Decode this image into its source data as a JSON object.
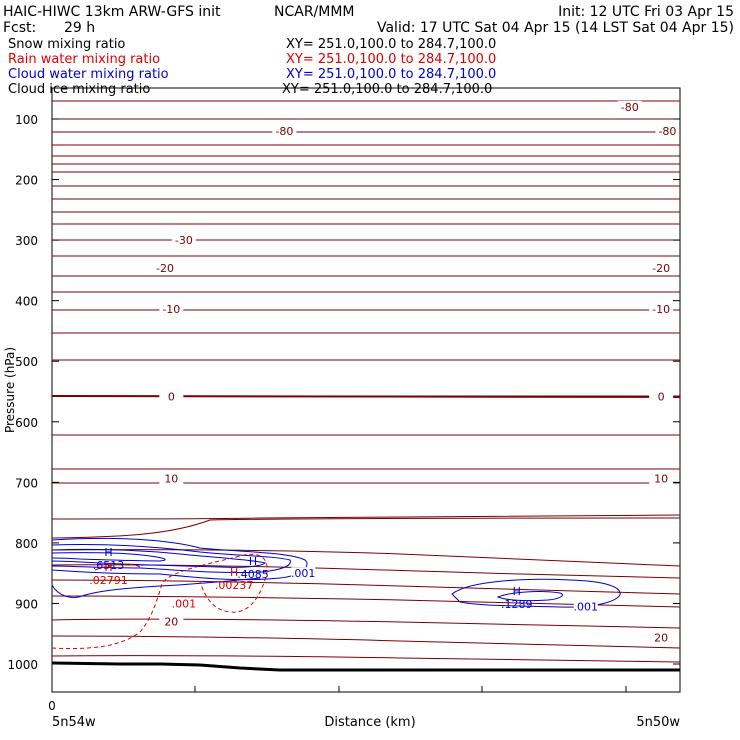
{
  "header": {
    "title": "HAIC-HIWC 13km ARW-GFS init",
    "org": "NCAR/MMM",
    "init": "Init: 12 UTC Fri 03 Apr 15",
    "fcst_label": "Fcst:",
    "fcst_value": "29 h",
    "valid": "Valid: 17 UTC Sat 04 Apr 15 (14 LST Sat 04 Apr 15)"
  },
  "fields": [
    {
      "name": "Snow mixing ratio",
      "xy": "XY= 251.0,100.0 to 284.7,100.0",
      "color": "#000000"
    },
    {
      "name": "Rain water mixing ratio",
      "xy": "XY= 251.0,100.0 to 284.7,100.0",
      "color": "#e00000"
    },
    {
      "name": "Cloud water mixing ratio",
      "xy": "XY= 251.0,100.0 to 284.7,100.0",
      "color": "#0000d0"
    },
    {
      "name": "Cloud ice mixing ratio",
      "xy": "XY= 251.0,100.0 to 284.7,100.0",
      "color": "#000000"
    }
  ],
  "chart_data": {
    "type": "contour",
    "ylabel": "Pressure (hPa)",
    "xlabel": "Distance (km)",
    "x_tick_label": "0",
    "x_start_label": "5n54w",
    "x_end_label": "5n50w",
    "y_ticks": [
      100,
      200,
      300,
      400,
      500,
      600,
      700,
      800,
      900,
      1000
    ],
    "ylim": [
      1050,
      50
    ],
    "temperature_color": "#7a0000",
    "temperature_labels": [
      {
        "value": "-80",
        "p": 120,
        "x": 0.37
      },
      {
        "value": "-80",
        "p": 80,
        "x": 0.92
      },
      {
        "value": "-80",
        "p": 120,
        "x": 0.98
      },
      {
        "value": "-30",
        "p": 300,
        "x": 0.21
      },
      {
        "value": "-20",
        "p": 346,
        "x": 0.18
      },
      {
        "value": "-20",
        "p": 346,
        "x": 0.97
      },
      {
        "value": "-10",
        "p": 414,
        "x": 0.19
      },
      {
        "value": "-10",
        "p": 414,
        "x": 0.97
      },
      {
        "value": "0",
        "p": 558,
        "x": 0.19
      },
      {
        "value": "0",
        "p": 558,
        "x": 0.97
      },
      {
        "value": "10",
        "p": 694,
        "x": 0.19
      },
      {
        "value": "10",
        "p": 694,
        "x": 0.97
      },
      {
        "value": "20",
        "p": 930,
        "x": 0.19
      },
      {
        "value": "20",
        "p": 956,
        "x": 0.97
      }
    ],
    "cloud_water_color": "#0000d0",
    "rain_water_color": "#e00000",
    "maxima": [
      {
        "series": "cloud_water",
        "marker": "H",
        "value": ".6513",
        "x": 0.09,
        "p": 825
      },
      {
        "series": "cloud_water",
        "marker": "H",
        "value": ".4085",
        "x": 0.32,
        "p": 840
      },
      {
        "series": "cloud_water",
        "marker": "H",
        "value": ".1289",
        "x": 0.74,
        "p": 889
      },
      {
        "series": "rain_water",
        "marker": "H",
        "value": ".02791",
        "x": 0.09,
        "p": 850
      },
      {
        "series": "rain_water",
        "marker": "H",
        "value": ".00237",
        "x": 0.29,
        "p": 858
      }
    ],
    "contour_labels": [
      {
        "series": "cloud_water",
        "value": ".001",
        "x": 0.4,
        "p": 850
      },
      {
        "series": "cloud_water",
        "value": ".001",
        "x": 0.85,
        "p": 905
      },
      {
        "series": "rain_water",
        "value": ".001",
        "x": 0.21,
        "p": 900
      }
    ]
  }
}
